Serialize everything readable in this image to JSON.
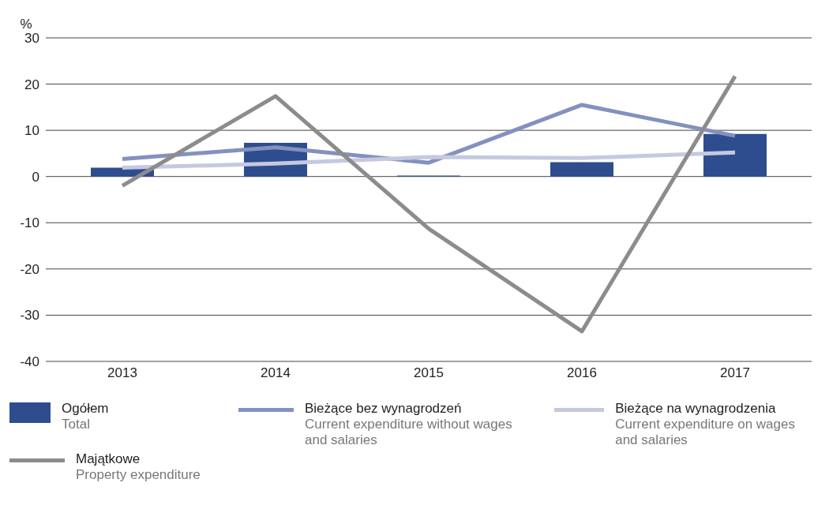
{
  "chart_data": {
    "type": "bar",
    "ylabel": "%",
    "categories": [
      "2013",
      "2014",
      "2015",
      "2016",
      "2017"
    ],
    "ylim": [
      -40,
      30
    ],
    "yticks": [
      -40,
      -30,
      -20,
      -10,
      0,
      10,
      20,
      30
    ],
    "grid": "y",
    "legend": "bottom",
    "marker": "none",
    "line_style": "solid",
    "series": [
      {
        "name": "Ogółem\nTotal",
        "color": "#2e4d8e",
        "values": [
          1.9,
          7.3,
          0.2,
          3.1,
          9.2
        ]
      },
      {
        "name": "Bieżące bez wynagrodzeń\nCurrent expenditure without wages and salaries",
        "type": "line",
        "color": "#8391bf",
        "values": [
          3.8,
          6.3,
          3.0,
          15.5,
          8.8
        ]
      },
      {
        "name": "Bieżące na wynagrodzenia\nCurrent expenditure on wages and salaries",
        "type": "line",
        "color": "#c5c9e0",
        "values": [
          1.9,
          2.8,
          4.2,
          4.0,
          5.2
        ]
      },
      {
        "name": "Majątkowe\nProperty expenditure",
        "type": "line",
        "color": "#8c8c8c",
        "values": [
          -2.0,
          17.4,
          -11.3,
          -33.5,
          21.7
        ]
      }
    ]
  }
}
